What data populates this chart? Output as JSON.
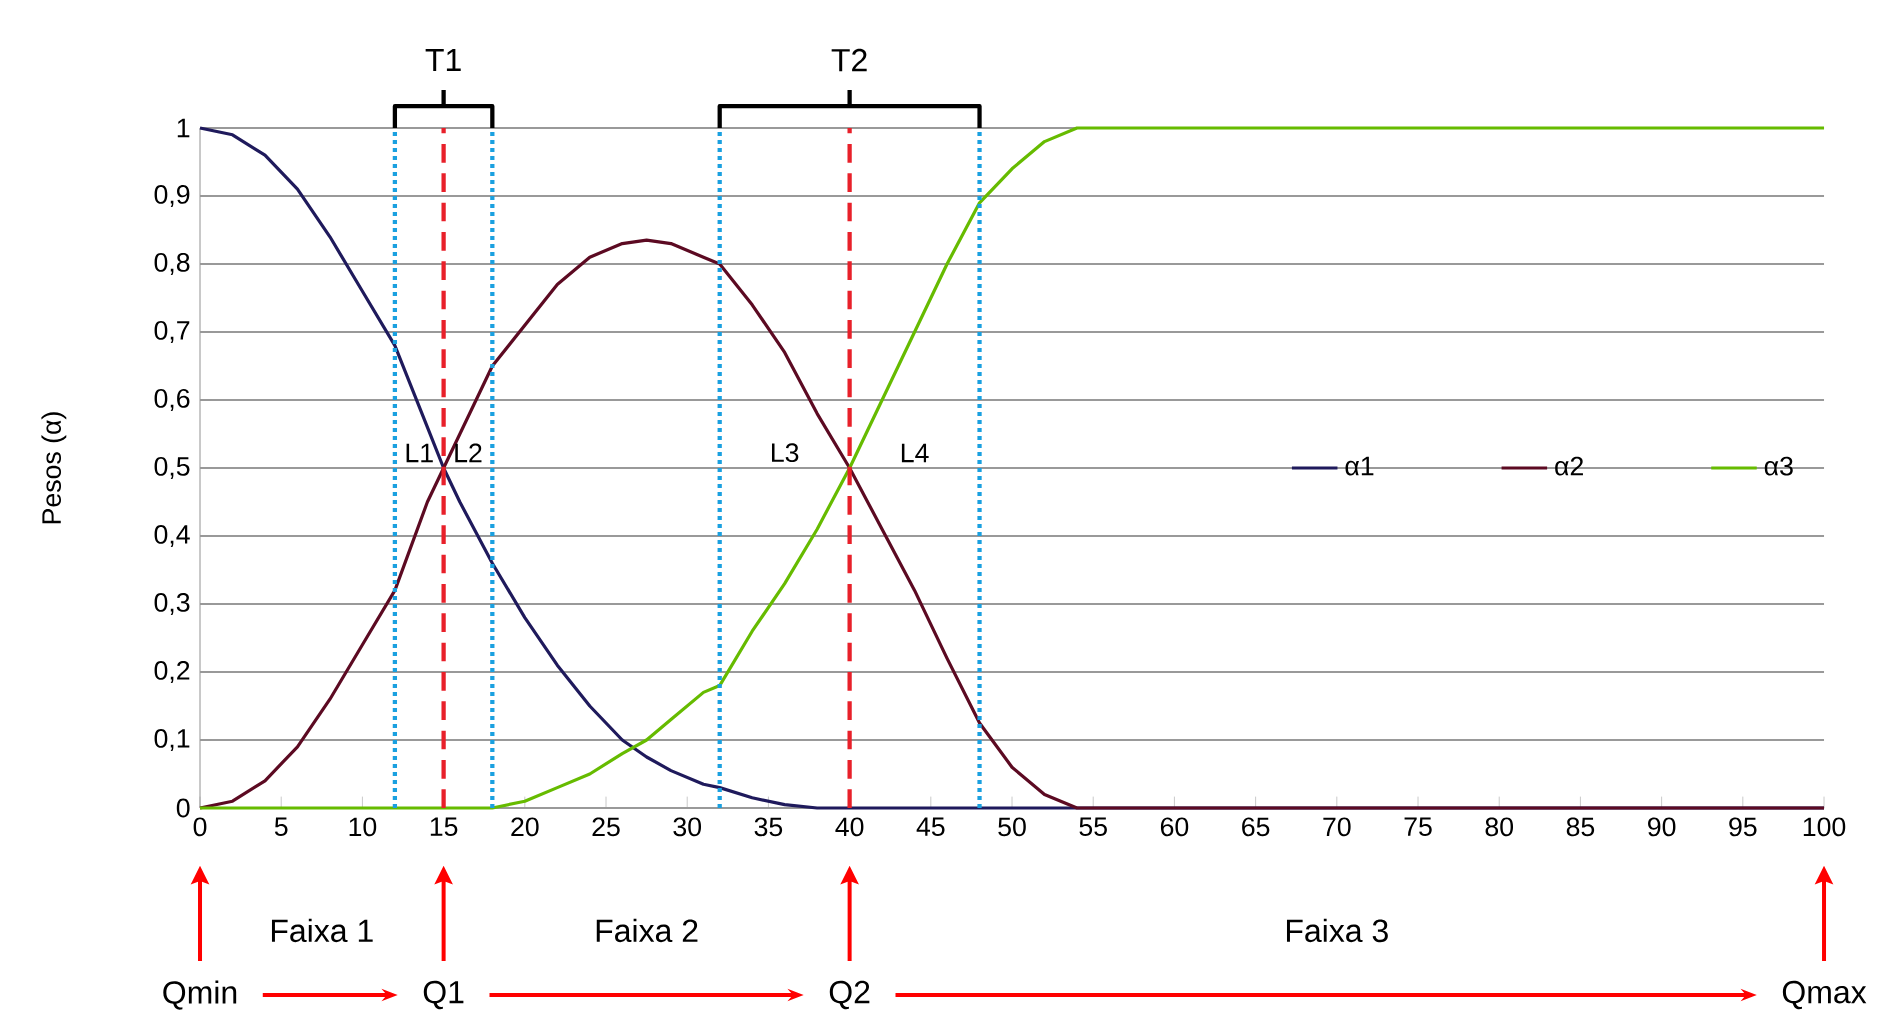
{
  "chart_data": {
    "type": "line",
    "ylabel": "Pesos (α)",
    "x": [
      0,
      2,
      4,
      6,
      8,
      10,
      12,
      14,
      15,
      16,
      18,
      20,
      22,
      24,
      26,
      27.5,
      29,
      31,
      32,
      34,
      36,
      38,
      40,
      42,
      44,
      46,
      48,
      50,
      52,
      54,
      56,
      100
    ],
    "series": [
      {
        "name": "α1",
        "color": "#1f1a5c",
        "values": [
          1,
          0.99,
          0.96,
          0.91,
          0.84,
          0.76,
          0.68,
          0.56,
          0.5,
          0.45,
          0.36,
          0.28,
          0.21,
          0.15,
          0.1,
          0.075,
          0.055,
          0.035,
          0.03,
          0.015,
          0.005,
          0,
          0,
          0,
          0,
          0,
          0,
          0,
          0,
          0,
          0,
          0
        ]
      },
      {
        "name": "α2",
        "color": "#5c0a22",
        "values": [
          0,
          0.01,
          0.04,
          0.09,
          0.16,
          0.24,
          0.32,
          0.45,
          0.5,
          0.55,
          0.65,
          0.71,
          0.77,
          0.81,
          0.83,
          0.835,
          0.83,
          0.81,
          0.8,
          0.74,
          0.67,
          0.58,
          0.5,
          0.41,
          0.32,
          0.22,
          0.125,
          0.06,
          0.02,
          0,
          0,
          0
        ]
      },
      {
        "name": "α3",
        "color": "#66bb00",
        "values": [
          0,
          0,
          0,
          0,
          0,
          0,
          0,
          0,
          0,
          0,
          0,
          0.01,
          0.03,
          0.05,
          0.08,
          0.1,
          0.13,
          0.17,
          0.18,
          0.26,
          0.33,
          0.41,
          0.5,
          0.6,
          0.7,
          0.8,
          0.89,
          0.94,
          0.98,
          1,
          1,
          1
        ]
      }
    ],
    "xlim": [
      0,
      100
    ],
    "xticks": [
      0,
      5,
      10,
      15,
      20,
      25,
      30,
      35,
      40,
      45,
      50,
      55,
      60,
      65,
      70,
      75,
      80,
      85,
      90,
      95,
      100
    ],
    "ylim": [
      0,
      1
    ],
    "yticks": [
      0,
      {
        "value": 0.1,
        "label": "0,1"
      },
      {
        "value": 0.2,
        "label": "0,2"
      },
      {
        "value": 0.3,
        "label": "0,3"
      },
      {
        "value": 0.4,
        "label": "0,4"
      },
      {
        "value": 0.5,
        "label": "0,5"
      },
      {
        "value": 0.6,
        "label": "0,6"
      },
      {
        "value": 0.7,
        "label": "0,7"
      },
      {
        "value": 0.8,
        "label": "0,8"
      },
      {
        "value": 0.9,
        "label": "0,9"
      },
      1
    ],
    "grid": "y",
    "legend": "right",
    "marker": "none",
    "line_style": "solid",
    "ref_lines": [
      {
        "axis": "x",
        "value": 15,
        "color": "#e8202a",
        "line_style": "dashed"
      },
      {
        "axis": "x",
        "value": 40,
        "color": "#e8202a",
        "line_style": "dashed"
      },
      {
        "axis": "x",
        "value": 12,
        "color": "#1aa0e0",
        "line_style": "dotted"
      },
      {
        "axis": "x",
        "value": 18,
        "color": "#1aa0e0",
        "line_style": "dotted"
      },
      {
        "axis": "x",
        "value": 32,
        "color": "#1aa0e0",
        "line_style": "dotted"
      },
      {
        "axis": "x",
        "value": 48,
        "color": "#1aa0e0",
        "line_style": "dotted"
      }
    ],
    "annotations": [
      "T1",
      "T2",
      "L1",
      "L2",
      "L3",
      "L4",
      "Faixa 1",
      "Faixa 2",
      "Faixa 3",
      "Qmin",
      "Q1",
      "Q2",
      "Qmax"
    ]
  }
}
